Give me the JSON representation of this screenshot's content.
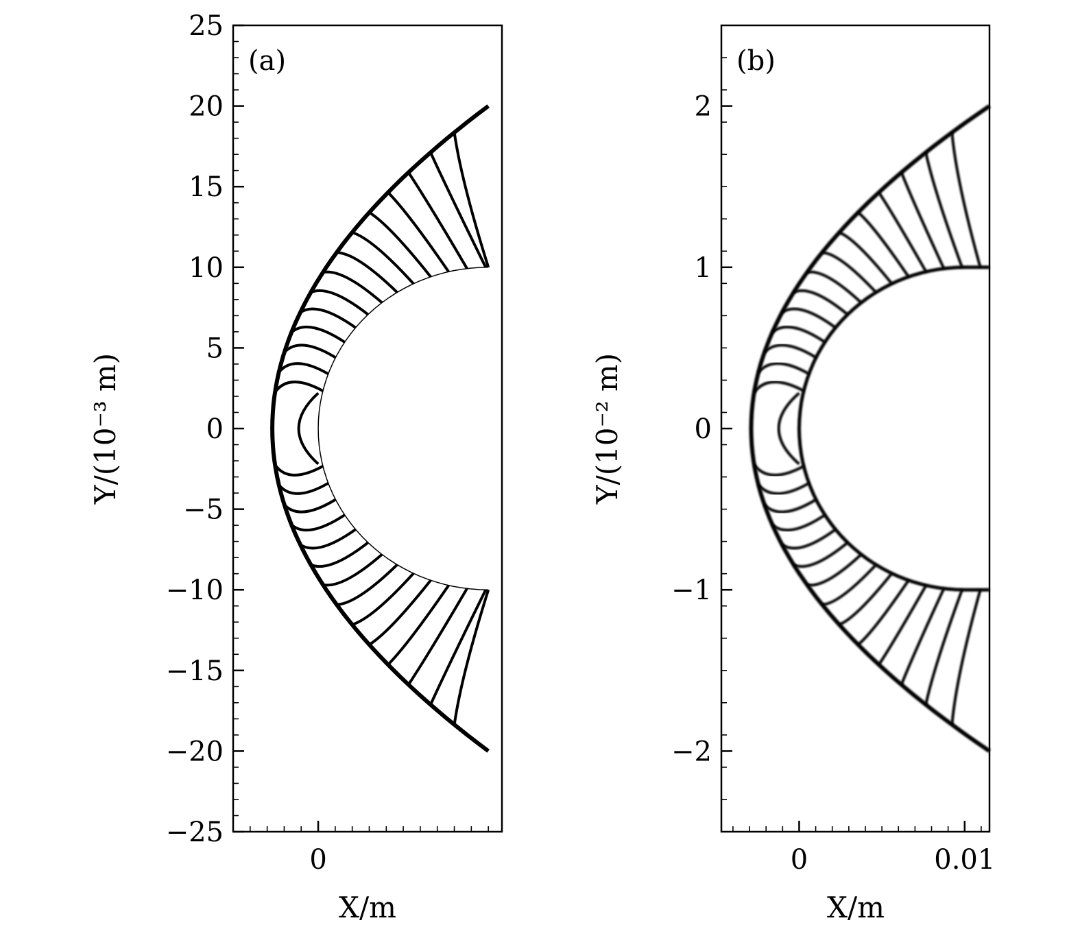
{
  "chart_data": [
    {
      "type": "line",
      "panel_label": "(a)",
      "xlabel": "X/m",
      "ylabel": "Y/(10⁻³ m)",
      "xlim": [
        -0.005,
        0.0108
      ],
      "ylim": [
        -25,
        25
      ],
      "x_ticks": [
        0
      ],
      "x_tick_labels": [
        "0"
      ],
      "y_ticks": [
        -25,
        -20,
        -15,
        -10,
        -5,
        0,
        5,
        10,
        15,
        20,
        25
      ],
      "y_tick_labels": [
        "−25",
        "−20",
        "−15",
        "−10",
        "−5",
        "0",
        "5",
        "10",
        "15",
        "20",
        "25"
      ],
      "grid": false,
      "body": {
        "name": "",
        "shape": "semicircle + flat top/bottom",
        "radius_1e-3m": 10,
        "x_end_m": 0.01
      },
      "shock": {
        "standoff_x_m": -0.0027,
        "y_at_x_end_1e-3m": 20
      },
      "contour_count_per_half": 14
    },
    {
      "type": "line",
      "panel_label": "(b)",
      "xlabel": "X/m",
      "ylabel": "Y/(10⁻² m)",
      "xlim": [
        -0.0047,
        0.0115
      ],
      "ylim": [
        -2.5,
        2.5
      ],
      "x_ticks": [
        0,
        0.01
      ],
      "x_tick_labels": [
        "0",
        "0.01"
      ],
      "y_ticks": [
        -2,
        -1,
        0,
        1,
        2
      ],
      "y_tick_labels": [
        "−2",
        "−1",
        "0",
        "1",
        "2"
      ],
      "grid": false,
      "body": {
        "name": "",
        "shape": "semicircle + flat top/bottom",
        "radius_1e-2m": 1,
        "x_end_m": 0.0115
      },
      "shock": {
        "standoff_x_m": -0.0029,
        "y_at_x_end_1e-2m": 2
      },
      "contour_count_per_half": 14
    }
  ]
}
